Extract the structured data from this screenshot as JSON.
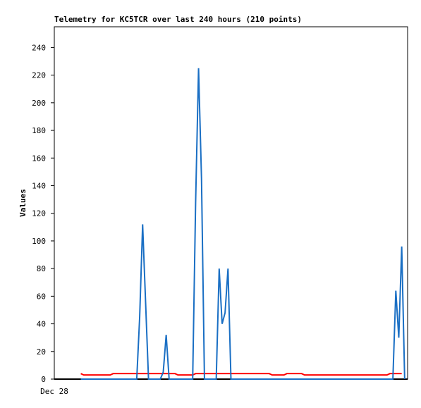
{
  "chart_data": {
    "type": "line",
    "title": "Telemetry for KC5TCR over last 240 hours (210 points)",
    "y_label": "Values",
    "categories": [
      "Dec 28",
      null,
      null,
      null,
      null,
      null,
      null,
      null,
      null,
      null,
      null,
      null,
      null,
      null,
      null,
      null,
      null,
      null,
      null,
      null,
      null,
      null,
      null,
      null,
      null,
      null,
      null,
      null,
      null,
      null,
      null,
      null,
      null,
      null,
      null,
      null,
      null,
      null,
      null,
      null,
      null,
      null,
      null,
      null,
      null,
      null,
      null,
      null,
      null,
      null,
      null,
      null,
      null,
      null,
      null,
      null,
      null,
      null,
      null,
      null,
      null,
      null,
      null,
      null,
      null,
      null,
      null,
      null,
      null,
      null,
      null,
      null,
      null,
      null,
      null,
      null,
      null,
      null,
      null,
      null,
      null,
      null,
      null,
      null,
      null,
      null,
      null,
      null,
      null,
      null,
      null,
      null,
      null,
      null,
      null,
      null,
      null,
      null,
      null,
      null,
      null,
      null,
      null,
      null,
      null,
      null,
      null,
      null,
      null,
      null,
      null,
      null,
      null,
      null,
      null,
      null,
      null,
      null,
      null,
      null,
      null
    ],
    "series": [
      {
        "color": "#ff0000",
        "values": [
          null,
          null,
          null,
          null,
          null,
          null,
          null,
          null,
          null,
          4,
          3,
          3,
          3,
          3,
          3,
          3,
          3,
          3,
          3,
          3,
          4,
          4,
          4,
          4,
          4,
          4,
          4,
          4,
          4,
          4,
          4,
          4,
          4,
          4,
          4,
          4,
          4,
          4,
          4,
          4,
          4,
          4,
          3,
          3,
          3,
          3,
          3,
          3,
          4,
          4,
          4,
          4,
          4,
          4,
          4,
          4,
          4,
          4,
          4,
          4,
          4,
          4,
          4,
          4,
          4,
          4,
          4,
          4,
          4,
          4,
          4,
          4,
          4,
          4,
          3,
          3,
          3,
          3,
          3,
          4,
          4,
          4,
          4,
          4,
          4,
          3,
          3,
          3,
          3,
          3,
          3,
          3,
          3,
          3,
          3,
          3,
          3,
          3,
          3,
          3,
          3,
          3,
          3,
          3,
          3,
          3,
          3,
          3,
          3,
          3,
          3,
          3,
          3,
          3,
          4,
          4,
          4,
          4,
          4,
          null,
          null
        ]
      },
      {
        "color": "#1a6fc4",
        "values": [
          null,
          null,
          null,
          null,
          null,
          null,
          null,
          null,
          null,
          0,
          0,
          0,
          0,
          0,
          0,
          0,
          0,
          0,
          0,
          0,
          0,
          0,
          0,
          0,
          0,
          0,
          0,
          0,
          0,
          45,
          112,
          56,
          0,
          0,
          0,
          0,
          0,
          5,
          32,
          0,
          0,
          0,
          0,
          0,
          0,
          0,
          0,
          0,
          128,
          225,
          145,
          0,
          0,
          0,
          0,
          0,
          80,
          40,
          48,
          80,
          0,
          0,
          0,
          0,
          0,
          0,
          0,
          0,
          0,
          0,
          0,
          0,
          0,
          0,
          0,
          0,
          0,
          0,
          0,
          0,
          0,
          0,
          0,
          0,
          0,
          0,
          0,
          0,
          0,
          0,
          0,
          0,
          0,
          0,
          0,
          0,
          0,
          0,
          0,
          0,
          0,
          0,
          0,
          0,
          0,
          0,
          0,
          0,
          0,
          0,
          0,
          0,
          0,
          0,
          0,
          0,
          64,
          30,
          96,
          0,
          null
        ]
      }
    ],
    "ylim": [
      0,
      255
    ],
    "yticks": [
      0,
      20,
      40,
      60,
      80,
      100,
      120,
      140,
      160,
      180,
      200,
      220,
      240
    ]
  }
}
